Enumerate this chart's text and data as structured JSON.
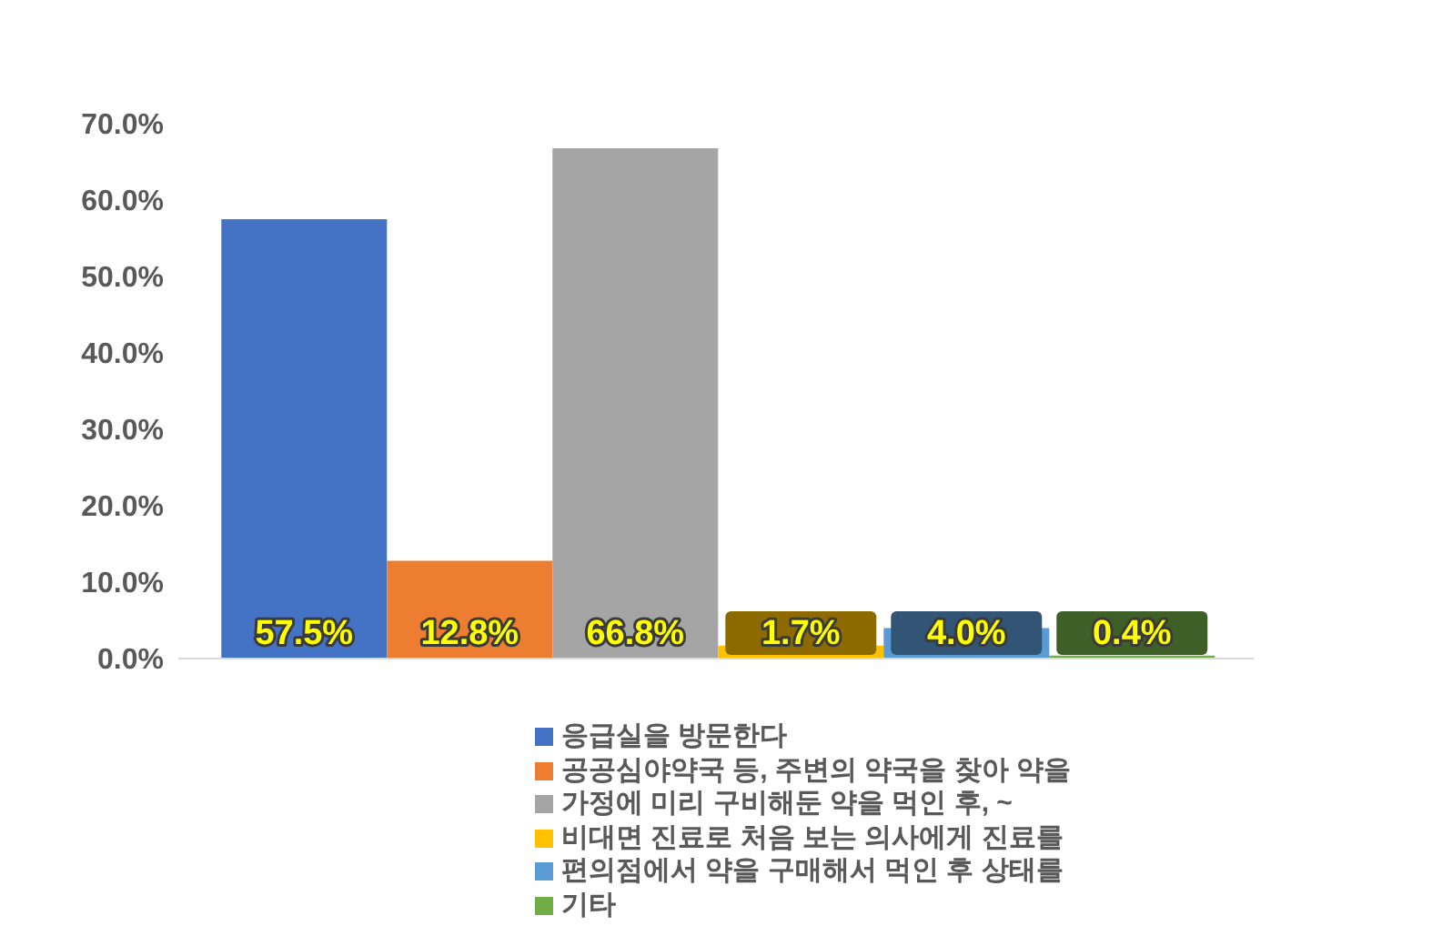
{
  "chart_data": {
    "type": "bar",
    "categories": [
      null
    ],
    "series": [
      {
        "name": "응급실을 방문한다",
        "color": "#4472c4",
        "values": [
          57.5
        ],
        "value_labels": [
          "57.5%"
        ]
      },
      {
        "name": "공공심야약국 등, 주변의 약국을 찾아 약을",
        "color": "#ed7d31",
        "values": [
          12.8
        ],
        "value_labels": [
          "12.8%"
        ]
      },
      {
        "name": "가정에 미리 구비해둔 약을 먹인 후, ~",
        "color": "#a5a5a5",
        "values": [
          66.8
        ],
        "value_labels": [
          "66.8%"
        ]
      },
      {
        "name": "비대면 진료로 처음 보는 의사에게 진료를",
        "color": "#ffc000",
        "values": [
          1.7
        ],
        "value_labels": [
          "1.7%"
        ]
      },
      {
        "name": "편의점에서 약을 구매해서 먹인 후 상태를",
        "color": "#5b9bd5",
        "values": [
          4.0
        ],
        "value_labels": [
          "4.0%"
        ]
      },
      {
        "name": "기타",
        "color": "#70ad47",
        "values": [
          0.4
        ],
        "value_labels": [
          "0.4%"
        ]
      }
    ],
    "ylim": [
      0,
      70
    ],
    "yticks": [
      {
        "value": 0,
        "label": "0.0%"
      },
      {
        "value": 10,
        "label": "10.0%"
      },
      {
        "value": 20,
        "label": "20.0%"
      },
      {
        "value": 30,
        "label": "30.0%"
      },
      {
        "value": 40,
        "label": "40.0%"
      },
      {
        "value": 50,
        "label": "50.0%"
      },
      {
        "value": 60,
        "label": "60.0%"
      },
      {
        "value": 70,
        "label": "70.0%"
      }
    ],
    "grid": false,
    "legend": "bottom"
  }
}
